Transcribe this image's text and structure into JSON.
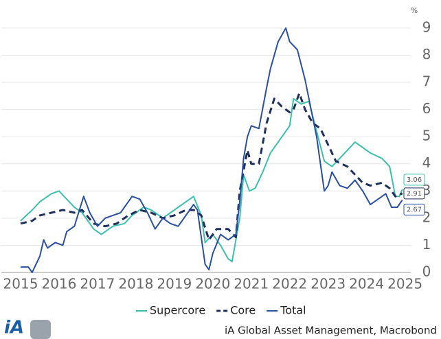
{
  "chart_data": {
    "type": "line",
    "unit_label": "%",
    "xlim": [
      2015,
      2025.65
    ],
    "xticks": [
      {
        "value": 2015.5,
        "label": "2015"
      },
      {
        "value": 2016.5,
        "label": "2016"
      },
      {
        "value": 2017.5,
        "label": "2017"
      },
      {
        "value": 2018.5,
        "label": "2018"
      },
      {
        "value": 2019.5,
        "label": "2019"
      },
      {
        "value": 2020.5,
        "label": "2020"
      },
      {
        "value": 2021.5,
        "label": "2021"
      },
      {
        "value": 2022.5,
        "label": "2022"
      },
      {
        "value": 2023.5,
        "label": "2023"
      },
      {
        "value": 2024.5,
        "label": "2024"
      },
      {
        "value": 2025.5,
        "label": "2025"
      }
    ],
    "ylim": [
      0,
      9.25
    ],
    "yticks": [
      0,
      1,
      2,
      3,
      4,
      5,
      6,
      7,
      8,
      9
    ],
    "grid": true,
    "series": [
      {
        "name": "Supercore",
        "color": "#3dbfad",
        "dashed": false,
        "x": [
          2015.5,
          2015.8,
          2016.0,
          2016.3,
          2016.5,
          2016.7,
          2016.9,
          2017.1,
          2017.4,
          2017.6,
          2017.9,
          2018.2,
          2018.4,
          2018.7,
          2018.9,
          2019.2,
          2019.5,
          2019.8,
          2020.0,
          2020.2,
          2020.3,
          2020.5,
          2020.7,
          2020.9,
          2021.0,
          2021.2,
          2021.3,
          2021.45,
          2021.6,
          2021.8,
          2022.0,
          2022.3,
          2022.5,
          2022.6,
          2022.8,
          2023.0,
          2023.2,
          2023.4,
          2023.6,
          2023.8,
          2024.0,
          2024.2,
          2024.4,
          2024.6,
          2024.9,
          2025.1,
          2025.25,
          2025.35,
          2025.43
        ],
        "values": [
          1.9,
          2.3,
          2.6,
          2.9,
          3.0,
          2.7,
          2.4,
          2.2,
          1.6,
          1.4,
          1.7,
          1.8,
          2.1,
          2.4,
          2.3,
          2.0,
          2.3,
          2.6,
          2.8,
          2.1,
          1.1,
          1.4,
          1.0,
          0.5,
          0.4,
          2.0,
          3.6,
          3.0,
          3.1,
          3.7,
          4.4,
          5.0,
          5.4,
          6.4,
          6.2,
          6.3,
          5.2,
          4.1,
          3.9,
          4.2,
          4.5,
          4.8,
          4.6,
          4.4,
          4.2,
          3.9,
          2.8,
          2.8,
          3.06
        ]
      },
      {
        "name": "Core",
        "color": "#1d2f5a",
        "dashed": true,
        "x": [
          2015.5,
          2015.8,
          2016.0,
          2016.3,
          2016.6,
          2016.9,
          2017.1,
          2017.4,
          2017.7,
          2018.0,
          2018.3,
          2018.6,
          2018.9,
          2019.2,
          2019.5,
          2019.8,
          2020.0,
          2020.2,
          2020.4,
          2020.6,
          2020.9,
          2021.1,
          2021.2,
          2021.4,
          2021.5,
          2021.7,
          2021.9,
          2022.1,
          2022.3,
          2022.5,
          2022.6,
          2022.75,
          2022.9,
          2023.1,
          2023.3,
          2023.5,
          2023.7,
          2024.0,
          2024.2,
          2024.4,
          2024.6,
          2024.9,
          2025.1,
          2025.25,
          2025.43
        ],
        "values": [
          1.8,
          1.9,
          2.1,
          2.2,
          2.3,
          2.2,
          2.3,
          1.8,
          1.7,
          1.8,
          2.1,
          2.3,
          2.2,
          2.0,
          2.1,
          2.3,
          2.3,
          2.1,
          1.2,
          1.6,
          1.6,
          1.3,
          3.0,
          4.5,
          4.0,
          4.0,
          5.5,
          6.4,
          6.1,
          5.9,
          6.0,
          6.6,
          6.0,
          5.5,
          5.3,
          4.7,
          4.1,
          3.9,
          3.6,
          3.3,
          3.2,
          3.3,
          3.1,
          2.8,
          2.91
        ]
      },
      {
        "name": "Total",
        "color": "#2a4fa0",
        "dashed": false,
        "x": [
          2015.5,
          2015.7,
          2015.8,
          2016.0,
          2016.1,
          2016.2,
          2016.4,
          2016.6,
          2016.7,
          2016.9,
          2017.14,
          2017.3,
          2017.5,
          2017.7,
          2017.9,
          2018.1,
          2018.4,
          2018.6,
          2018.8,
          2019.0,
          2019.2,
          2019.4,
          2019.6,
          2019.8,
          2020.0,
          2020.1,
          2020.3,
          2020.4,
          2020.5,
          2020.7,
          2020.9,
          2021.1,
          2021.2,
          2021.3,
          2021.4,
          2021.5,
          2021.7,
          2021.9,
          2022.0,
          2022.2,
          2022.4,
          2022.5,
          2022.7,
          2022.9,
          2023.0,
          2023.2,
          2023.4,
          2023.5,
          2023.6,
          2023.8,
          2024.0,
          2024.2,
          2024.4,
          2024.6,
          2024.8,
          2025.0,
          2025.15,
          2025.3,
          2025.43
        ],
        "values": [
          0.2,
          0.2,
          0.0,
          0.6,
          1.2,
          0.9,
          1.1,
          1.0,
          1.5,
          1.7,
          2.8,
          2.2,
          1.7,
          2.0,
          2.1,
          2.2,
          2.8,
          2.7,
          2.2,
          1.6,
          2.0,
          1.8,
          1.7,
          2.1,
          2.5,
          2.3,
          0.3,
          0.1,
          0.7,
          1.4,
          1.2,
          1.4,
          2.6,
          4.2,
          5.0,
          5.4,
          5.3,
          6.8,
          7.5,
          8.5,
          9.0,
          8.5,
          8.2,
          7.1,
          6.4,
          5.0,
          3.0,
          3.2,
          3.7,
          3.2,
          3.1,
          3.4,
          3.0,
          2.5,
          2.7,
          2.9,
          2.4,
          2.4,
          2.67
        ]
      }
    ],
    "logo_text": "iA",
    "source": "iA Global Asset Management, Macrobond"
  }
}
